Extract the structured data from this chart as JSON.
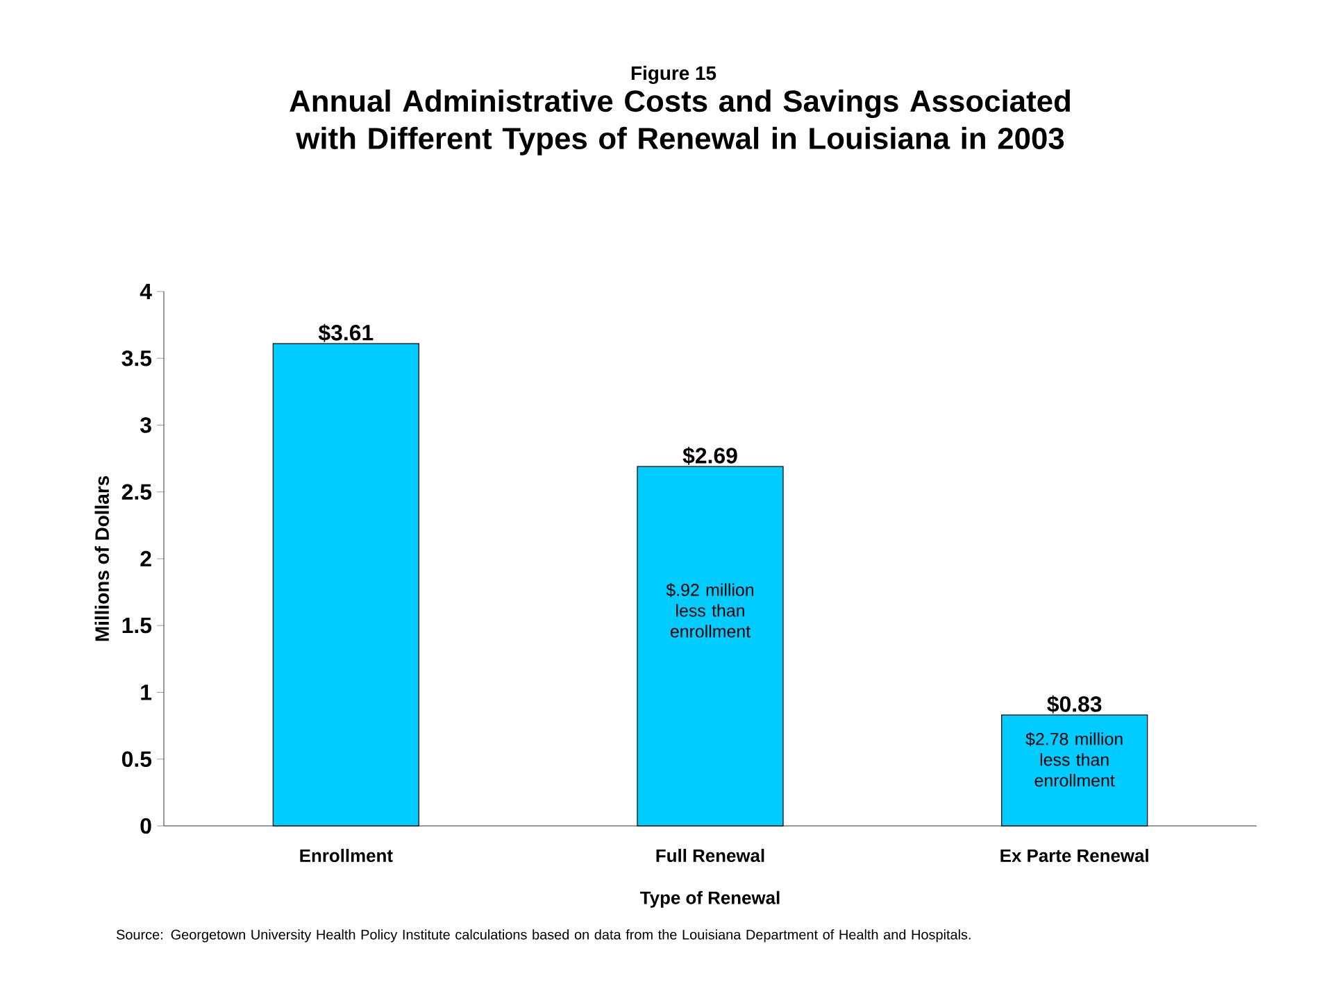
{
  "chart_data": {
    "type": "bar",
    "title": "Figure 15",
    "subtitle": "Annual Administrative Costs and Savings Associated with Different Types of Renewal in Louisiana in 2003",
    "xlabel": "Type of Renewal",
    "ylabel": "Millions of Dollars",
    "categories": [
      "Enrollment",
      "Full Renewal",
      "Ex Parte Renewal"
    ],
    "values": [
      3.61,
      2.69,
      0.83
    ],
    "value_labels": [
      "$3.61",
      "$2.69",
      "$0.83"
    ],
    "color": "#00ccff",
    "ylim": [
      0,
      4
    ],
    "yticks": [
      0,
      0.5,
      1,
      1.5,
      2,
      2.5,
      3,
      3.5,
      4
    ],
    "grid": false,
    "annotations": [
      "$.92 million less than enrollment",
      "$2.78 million less than enrollment",
      "Source: Georgetown University Health Policy Institute calculations based on data from the Louisiana Department of Health and Hospitals."
    ]
  }
}
